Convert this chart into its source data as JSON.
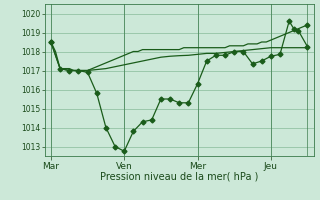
{
  "background_color": "#cce8d8",
  "plot_bg_color": "#cce8d8",
  "grid_color": "#88bb99",
  "line_color": "#1a5c1a",
  "xlabel": "Pression niveau de la mer( hPa )",
  "ylim": [
    1012.5,
    1020.5
  ],
  "yticks": [
    1013,
    1014,
    1015,
    1016,
    1017,
    1018,
    1019,
    1020
  ],
  "xtick_positions": [
    0,
    96,
    192,
    288,
    336
  ],
  "xtick_labels": [
    "Mar",
    "Ven",
    "Mer",
    "Jeu",
    ""
  ],
  "xlim": [
    -8,
    344
  ],
  "series1_x": [
    0,
    6,
    12,
    18,
    24,
    30,
    36,
    42,
    48,
    54,
    60,
    66,
    72,
    78,
    84,
    90,
    96,
    102,
    108,
    114,
    120,
    126,
    132,
    138,
    144,
    150,
    156,
    162,
    168,
    174,
    180,
    186,
    192,
    198,
    204,
    210,
    216,
    222,
    228,
    234,
    240,
    246,
    252,
    258,
    264,
    270,
    276,
    282,
    288,
    294,
    300,
    306,
    312,
    318,
    324,
    330,
    336
  ],
  "series1_y": [
    1018.5,
    1018.0,
    1017.1,
    1017.1,
    1017.1,
    1017.0,
    1017.0,
    1017.0,
    1017.0,
    1017.1,
    1017.2,
    1017.3,
    1017.4,
    1017.5,
    1017.6,
    1017.7,
    1017.8,
    1017.9,
    1018.0,
    1018.0,
    1018.1,
    1018.1,
    1018.1,
    1018.1,
    1018.1,
    1018.1,
    1018.1,
    1018.1,
    1018.1,
    1018.2,
    1018.2,
    1018.2,
    1018.2,
    1018.2,
    1018.2,
    1018.2,
    1018.2,
    1018.2,
    1018.2,
    1018.3,
    1018.3,
    1018.3,
    1018.3,
    1018.4,
    1018.4,
    1018.4,
    1018.5,
    1018.5,
    1018.6,
    1018.7,
    1018.8,
    1018.9,
    1019.0,
    1019.1,
    1019.2,
    1019.3,
    1019.4
  ],
  "series2_x": [
    0,
    12,
    24,
    36,
    48,
    60,
    72,
    84,
    96,
    108,
    120,
    132,
    144,
    156,
    168,
    180,
    192,
    204,
    216,
    228,
    240,
    252,
    264,
    276,
    288,
    300,
    312,
    318,
    324,
    336
  ],
  "series2_y": [
    1018.5,
    1017.1,
    1017.0,
    1017.0,
    1016.9,
    1015.8,
    1014.0,
    1013.0,
    1012.75,
    1013.8,
    1014.3,
    1014.4,
    1015.5,
    1015.5,
    1015.3,
    1015.3,
    1016.3,
    1017.5,
    1017.8,
    1017.8,
    1018.0,
    1018.0,
    1017.35,
    1017.5,
    1017.75,
    1017.85,
    1019.6,
    1019.2,
    1019.1,
    1018.25
  ],
  "series3_x": [
    0,
    12,
    24,
    36,
    48,
    60,
    72,
    84,
    96,
    108,
    120,
    132,
    144,
    156,
    168,
    180,
    192,
    204,
    216,
    228,
    240,
    252,
    264,
    276,
    288,
    300,
    312,
    336
  ],
  "series3_y": [
    1018.5,
    1017.1,
    1017.0,
    1017.0,
    1017.0,
    1017.05,
    1017.1,
    1017.2,
    1017.3,
    1017.4,
    1017.5,
    1017.6,
    1017.7,
    1017.75,
    1017.78,
    1017.8,
    1017.85,
    1017.9,
    1017.9,
    1017.95,
    1018.0,
    1018.05,
    1018.1,
    1018.15,
    1018.2,
    1018.2,
    1018.2,
    1018.2
  ],
  "vline_positions": [
    0,
    96,
    192,
    288,
    336
  ]
}
